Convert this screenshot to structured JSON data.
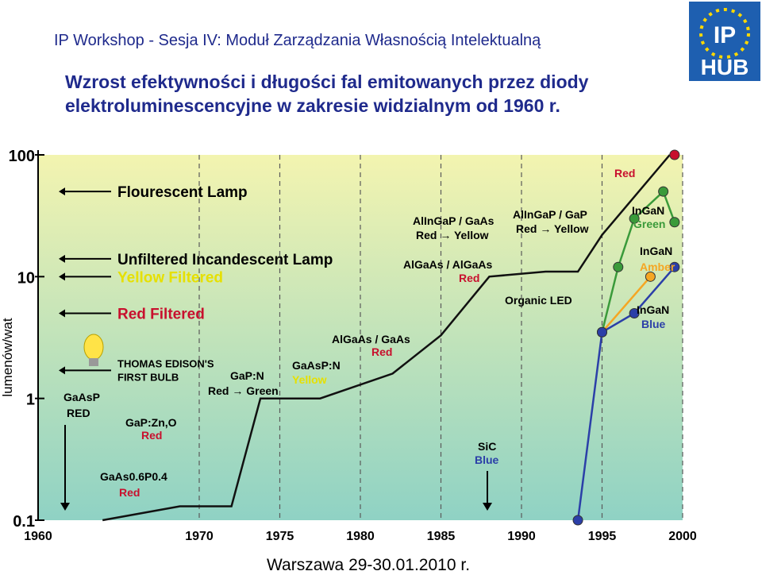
{
  "header": {
    "title": "IP Workshop - Sesja IV: Moduł Zarządzania Własnością Intelektualną"
  },
  "slide": {
    "title_line1": "Wzrost efektywności i długości fal emitowanych przez diody",
    "title_line2": "elektroluminescencyjne w zakresie widzialnym od 1960 r."
  },
  "logo": {
    "text_top": "IP",
    "text_bottom": "HUB",
    "icon": "ip-hub-logo-icon"
  },
  "footer": {
    "text": "Warszawa 29-30.01.2010 r."
  },
  "colors": {
    "title": "#1f2a8c",
    "chart_bg_top": "#f3f4b0",
    "chart_bg_bottom": "#8fd2c4",
    "red": "#c8102e",
    "yellow": "#e6e000",
    "green": "#3a9a3a",
    "blue": "#2b3fa8",
    "orange": "#f5a623"
  },
  "chart_data": {
    "type": "line",
    "ylabel": "lumenów/wat",
    "yscale": "log",
    "ylim": [
      0.1,
      100
    ],
    "xlim": [
      1960,
      2000
    ],
    "yticks": [
      "100",
      "10",
      "1",
      "0.1"
    ],
    "xticks": [
      "1960",
      "1970",
      "1975",
      "1980",
      "1985",
      "1990",
      "1995",
      "2000"
    ],
    "reference_levels": [
      {
        "label": "Flourescent Lamp",
        "y": 50,
        "color": "#000000"
      },
      {
        "label": "Unfiltered Incandescent Lamp",
        "y": 14,
        "color": "#000000"
      },
      {
        "label": "Yellow Filtered",
        "y": 10,
        "color": "#e6e000"
      },
      {
        "label": "Red Filtered",
        "y": 5,
        "color": "#c8102e"
      },
      {
        "label_line1": "THOMAS EDISON'S",
        "label_line2": "FIRST BULB",
        "y": 1.7,
        "color": "#000000"
      }
    ],
    "step_series": {
      "name": "",
      "x": [
        1964,
        1968.8,
        1972,
        1972,
        1973.8,
        1977.5,
        1977.5,
        1982,
        1982,
        1985,
        1985,
        1988,
        1988,
        1991.5,
        1991.5,
        1993.5,
        1993.5,
        1995,
        1995,
        1999.2
      ],
      "y": [
        0.1,
        0.13,
        0.13,
        0.13,
        1,
        1,
        1,
        1.6,
        1.6,
        3.3,
        3.3,
        10,
        10,
        11,
        11,
        11,
        11,
        22,
        22,
        100
      ]
    },
    "led_series": [
      {
        "name": "InGaN Green",
        "color": "#3a9a3a",
        "x": [
          1995,
          1996,
          1997,
          1998.8,
          1999.5
        ],
        "y": [
          3.5,
          12,
          30,
          50,
          28
        ]
      },
      {
        "name": "InGaN Amber",
        "color": "#f5a623",
        "x": [
          1995,
          1998
        ],
        "y": [
          3.5,
          10
        ]
      },
      {
        "name": "InGaN Blue",
        "color": "#2b3fa8",
        "x": [
          1993.5,
          1995,
          1997,
          1999.5
        ],
        "y": [
          0.1,
          3.5,
          5,
          12
        ]
      },
      {
        "name": "Red",
        "color": "#c8102e",
        "x": [
          1999.5
        ],
        "y": [
          100
        ]
      }
    ],
    "annotations": [
      {
        "text": "GaAsP",
        "color": "#000000"
      },
      {
        "text": "RED",
        "color": "#000000"
      },
      {
        "text": "GaP:Zn,O",
        "color": "#000000"
      },
      {
        "text": "Red",
        "color": "#c8102e"
      },
      {
        "text": "GaAs0.6P0.4",
        "color": "#000000"
      },
      {
        "text": "Red",
        "color": "#c8102e"
      },
      {
        "text": "GaP:N",
        "color": "#000000"
      },
      {
        "text": "Red → Green",
        "color": "#000000"
      },
      {
        "text": "GaAsP:N",
        "color": "#000000"
      },
      {
        "text": "Yellow",
        "color": "#e6e000"
      },
      {
        "text": "AlGaAs / GaAs",
        "color": "#000000"
      },
      {
        "text": "Red",
        "color": "#c8102e"
      },
      {
        "text": "AlGaAs / AlGaAs",
        "color": "#000000"
      },
      {
        "text": "Red",
        "color": "#c8102e"
      },
      {
        "text": "AlInGaP / GaAs",
        "color": "#000000"
      },
      {
        "text": "Red → Yellow",
        "color": "#000000"
      },
      {
        "text": "AlInGaP / GaP",
        "color": "#000000"
      },
      {
        "text": "Red → Yellow",
        "color": "#000000"
      },
      {
        "text": "Organic LED",
        "color": "#000000"
      },
      {
        "text": "SiC",
        "color": "#000000"
      },
      {
        "text": "Blue",
        "color": "#2b3fa8"
      },
      {
        "text": "Red",
        "color": "#c8102e"
      },
      {
        "text": "InGaN",
        "color": "#000000"
      },
      {
        "text": "Green",
        "color": "#3a9a3a"
      },
      {
        "text": "InGaN",
        "color": "#000000"
      },
      {
        "text": "Amber",
        "color": "#f5a623"
      },
      {
        "text": "InGaN",
        "color": "#000000"
      },
      {
        "text": "Blue",
        "color": "#2b3fa8"
      }
    ]
  }
}
